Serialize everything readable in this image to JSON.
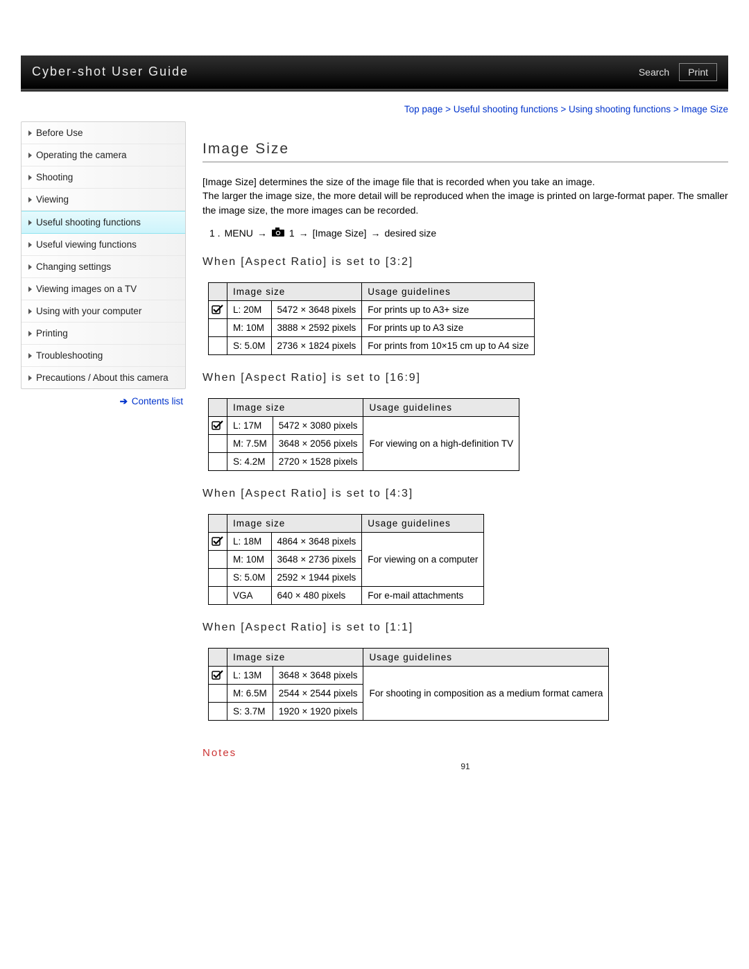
{
  "header": {
    "title": "Cyber-shot User Guide",
    "search": "Search",
    "print": "Print"
  },
  "breadcrumb": "Top page > Useful shooting functions > Using shooting functions > Image Size",
  "sidebar": {
    "items": [
      "Before Use",
      "Operating the camera",
      "Shooting",
      "Viewing",
      "Useful shooting functions",
      "Useful viewing functions",
      "Changing settings",
      "Viewing images on a TV",
      "Using with your computer",
      "Printing",
      "Troubleshooting",
      "Precautions / About this camera"
    ],
    "active_index": 4,
    "contents_link": "Contents list"
  },
  "page_title": "Image Size",
  "description": "[Image Size] determines the size of the image file that is recorded when you take an image.\nThe larger the image size, the more detail will be reproduced when the image is printed on large-format paper. The smaller the image size, the more images can be recorded.",
  "menu_path": {
    "step_no": "1 .",
    "menu": "MENU",
    "cam_suffix": "1",
    "item": "[Image Size]",
    "target": "desired size"
  },
  "table_headers": {
    "size": "Image size",
    "usage": "Usage guidelines"
  },
  "sections": [
    {
      "heading": "When [Aspect Ratio] is set to [3:2]",
      "rows": [
        {
          "check": true,
          "size": "L: 20M",
          "pixels": "5472 × 3648 pixels",
          "usage": "For prints up to A3+ size"
        },
        {
          "check": false,
          "size": "M: 10M",
          "pixels": "3888 × 2592 pixels",
          "usage": "For prints up to A3 size"
        },
        {
          "check": false,
          "size": "S: 5.0M",
          "pixels": "2736 × 1824 pixels",
          "usage": "For prints from 10×15 cm up to A4 size"
        }
      ]
    },
    {
      "heading": "When [Aspect Ratio] is set to [16:9]",
      "usage_merged": "For viewing on a high-definition TV",
      "rows": [
        {
          "check": true,
          "size": "L: 17M",
          "pixels": "5472 × 3080 pixels"
        },
        {
          "check": false,
          "size": "M: 7.5M",
          "pixels": "3648 × 2056 pixels"
        },
        {
          "check": false,
          "size": "S: 4.2M",
          "pixels": "2720 × 1528 pixels"
        }
      ]
    },
    {
      "heading": "When [Aspect Ratio] is set to [4:3]",
      "rows": [
        {
          "check": true,
          "size": "L: 18M",
          "pixels": "4864 × 3648 pixels",
          "usage_merged_start": true,
          "usage_merged_text": "For viewing on a computer",
          "usage_rowspan": 3
        },
        {
          "check": false,
          "size": "M: 10M",
          "pixels": "3648 × 2736 pixels"
        },
        {
          "check": false,
          "size": "S: 5.0M",
          "pixels": "2592 × 1944 pixels"
        },
        {
          "check": false,
          "size": "VGA",
          "pixels": "640 × 480 pixels",
          "usage": "For e-mail attachments"
        }
      ]
    },
    {
      "heading": "When [Aspect Ratio] is set to [1:1]",
      "usage_merged": "For shooting in composition as a medium format camera",
      "rows": [
        {
          "check": true,
          "size": "L: 13M",
          "pixels": "3648 × 3648 pixels"
        },
        {
          "check": false,
          "size": "M: 6.5M",
          "pixels": "2544 × 2544 pixels"
        },
        {
          "check": false,
          "size": "S: 3.7M",
          "pixels": "1920 × 1920 pixels"
        }
      ]
    }
  ],
  "notes_label": "Notes",
  "page_number": "91"
}
